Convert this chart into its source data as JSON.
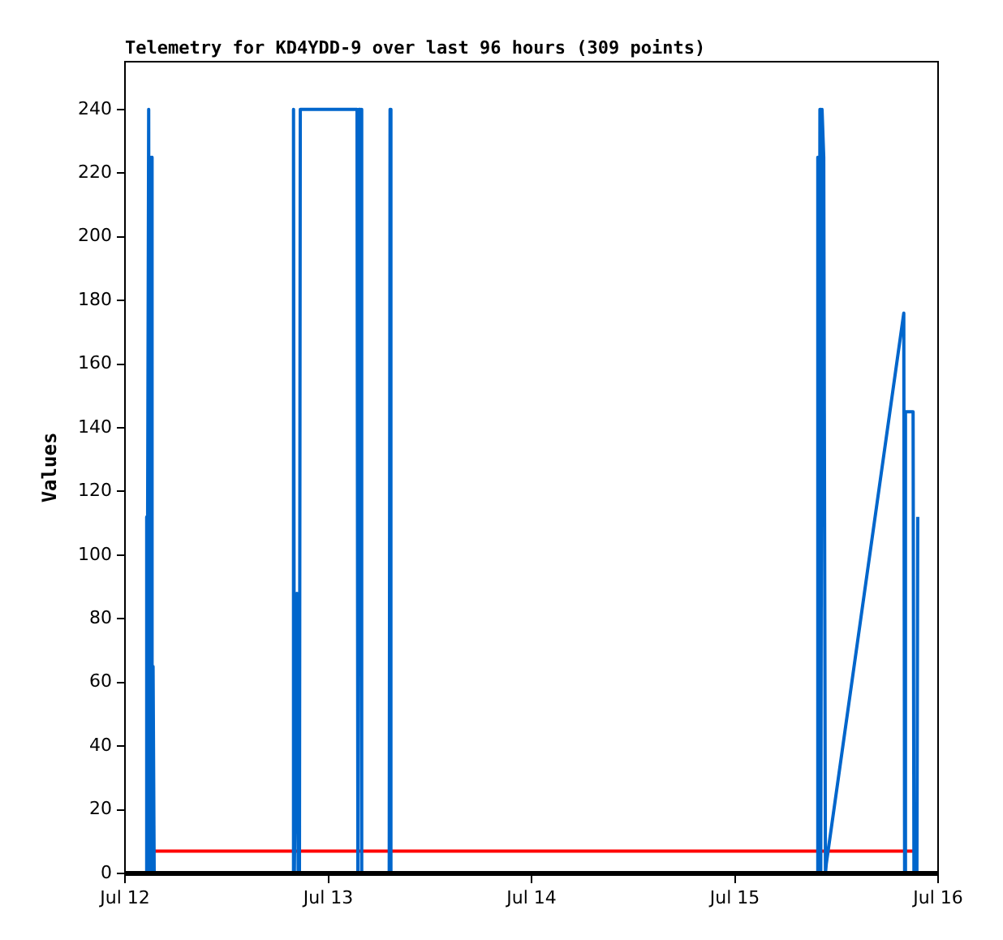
{
  "chart_data": {
    "type": "line",
    "title": "Telemetry for KD4YDD-9 over last 96 hours (309 points)",
    "ylabel": "Values",
    "xlim": [
      "--07-12",
      "--07-16"
    ],
    "xticks": [
      {
        "value": "--07-12",
        "label": "Jul 12"
      },
      {
        "value": "--07-13",
        "label": "Jul 13"
      },
      {
        "value": "--07-14",
        "label": "Jul 14"
      },
      {
        "value": "--07-15",
        "label": "Jul 15"
      },
      {
        "value": "--07-16",
        "label": "Jul 16"
      }
    ],
    "ylim": [
      0,
      255
    ],
    "yticks": [
      0,
      20,
      40,
      60,
      80,
      100,
      120,
      140,
      160,
      180,
      200,
      220,
      240
    ],
    "grid": false,
    "legend": false,
    "marker": "none",
    "line_style": "solid",
    "series": [
      {
        "color": "#0066cc",
        "x": [
          "--07-12T02:30",
          "--07-12T02:32",
          "--07-12T02:36",
          "--07-12T02:48",
          "--07-12T02:54",
          "--07-12T03:04",
          "--07-12T03:12",
          "--07-12T03:19",
          "--07-12T03:27",
          "--07-12T10:00",
          "--07-12T19:51",
          "--07-12T19:54",
          "--07-12T20:00",
          "--07-12T20:06",
          "--07-12T20:18",
          "--07-12T20:27",
          "--07-12T20:36",
          "--07-12T20:42",
          "--07-13T03:24",
          "--07-13T03:30",
          "--07-13T03:36",
          "--07-13T03:48",
          "--07-13T03:57",
          "--07-13T07:12",
          "--07-13T07:18",
          "--07-13T07:24",
          "--07-14T02:00",
          "--07-15T09:42",
          "--07-15T09:48",
          "--07-15T09:54",
          "--07-15T10:03",
          "--07-15T10:09",
          "--07-15T10:18",
          "--07-15T10:30",
          "--07-15T10:42",
          "--07-15T10:48",
          "--07-15T19:57",
          "--07-15T20:03",
          "--07-15T20:09",
          "--07-15T21:03",
          "--07-15T21:09",
          "--07-15T21:30",
          "--07-15T21:36"
        ],
        "values": [
          0,
          112,
          0,
          240,
          0,
          225,
          0,
          65,
          0,
          0,
          0,
          240,
          0,
          0,
          88,
          0,
          0,
          240,
          240,
          0,
          240,
          240,
          0,
          0,
          240,
          0,
          0,
          0,
          225,
          0,
          240,
          0,
          240,
          225,
          0,
          3,
          176,
          0,
          145,
          145,
          0,
          0,
          112
        ]
      },
      {
        "color": "#ff0000",
        "x": [
          "--07-12T03:27",
          "--07-15T21:30"
        ],
        "values": [
          7,
          7
        ]
      }
    ]
  }
}
